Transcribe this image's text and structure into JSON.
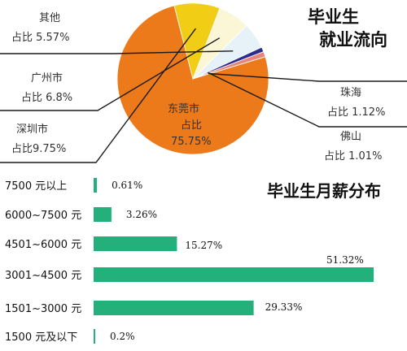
{
  "colors": {
    "dongguan": "#EC7A1B",
    "shenzhen": "#F2CD16",
    "guangzhou": "#FBF6D6",
    "other": "#E6F2F8",
    "foshan": "#2A2E8C",
    "zhuhai": "#E8847A",
    "bar": "#23B07A",
    "line": "#1a1a1a"
  },
  "chart_data": [
    {
      "type": "pie",
      "title_line1": "毕业生",
      "title_line2": "就业流向",
      "slices": [
        {
          "key": "dongguan",
          "name": "东莞市",
          "share_label": "占比",
          "value_label": "75.75%",
          "value": 75.75
        },
        {
          "key": "shenzhen",
          "name": "深圳市",
          "share_label": "占比9.75%",
          "value": 9.75
        },
        {
          "key": "guangzhou",
          "name": "广州市",
          "share_label": "占比 6.8%",
          "value": 6.8
        },
        {
          "key": "other",
          "name": "其他",
          "share_label": "占比 5.57%",
          "value": 5.57
        },
        {
          "key": "foshan",
          "name": "佛山",
          "share_label": "占比 1.01%",
          "value": 1.01
        },
        {
          "key": "zhuhai",
          "name": "珠海",
          "share_label": "占比 1.12%",
          "value": 1.12
        }
      ]
    },
    {
      "type": "bar",
      "orientation": "horizontal",
      "title": "毕业生月薪分布",
      "unit": "%",
      "categories": [
        "7500 元以上",
        "6000~7500 元",
        "4501~6000 元",
        "3001~4500 元",
        "1501~3000 元",
        "1500 元及以下"
      ],
      "values": [
        0.61,
        3.26,
        15.27,
        51.32,
        29.33,
        0.2
      ],
      "value_labels": [
        "0.61%",
        "3.26%",
        "15.27%",
        "51.32%",
        "29.33%",
        "0.2%"
      ],
      "xlim": [
        0,
        51.32
      ]
    }
  ]
}
